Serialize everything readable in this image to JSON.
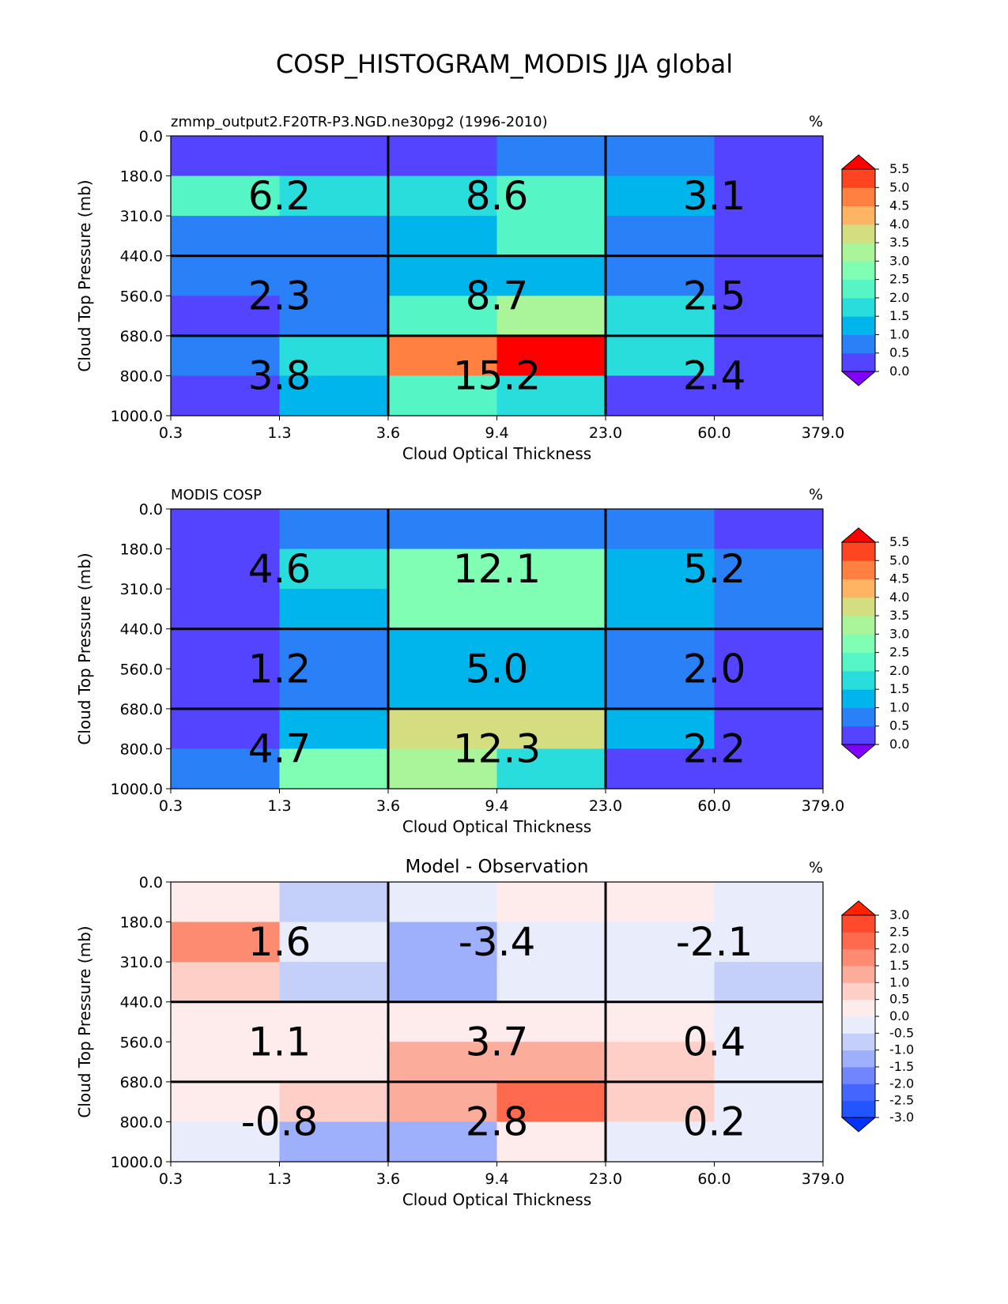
{
  "title": "COSP_HISTOGRAM_MODIS JJA global",
  "chart_data": [
    {
      "type": "heatmap",
      "panel_title": "zmmp_output2.F20TR-P3.NGD.ne30pg2 (1996-2010)",
      "title_align": "left",
      "units": "%",
      "xlabel": "Cloud Optical Thickness",
      "ylabel": "Cloud Top Pressure (mb)",
      "x_edges": [
        "0.3",
        "1.3",
        "3.6",
        "9.4",
        "23.0",
        "60.0",
        "379.0"
      ],
      "y_edges": [
        "0.0",
        "180.0",
        "310.0",
        "440.0",
        "560.0",
        "680.0",
        "800.0",
        "1000.0"
      ],
      "values": [
        [
          0.3,
          0.3,
          0.3,
          0.8,
          0.8,
          0.3
        ],
        [
          2.1,
          1.8,
          1.8,
          2.1,
          1.4,
          0.3
        ],
        [
          0.8,
          0.8,
          1.4,
          2.1,
          0.8,
          0.3
        ],
        [
          0.8,
          0.8,
          1.4,
          1.4,
          0.8,
          0.3
        ],
        [
          0.3,
          0.8,
          2.1,
          3.1,
          1.8,
          0.3
        ],
        [
          0.8,
          1.8,
          4.8,
          5.8,
          1.8,
          0.3
        ],
        [
          0.3,
          1.4,
          2.1,
          1.8,
          0.3,
          0.3
        ]
      ],
      "box_sums": [
        [
          "6.2",
          "8.6",
          "3.1"
        ],
        [
          "2.3",
          "8.7",
          "2.5"
        ],
        [
          "3.8",
          "15.2",
          "2.4"
        ]
      ],
      "colorbar": {
        "levels": [
          0.0,
          0.5,
          1.0,
          1.5,
          2.0,
          2.5,
          3.0,
          3.5,
          4.0,
          4.5,
          5.0,
          5.5
        ],
        "tick_labels": [
          "0.0",
          "0.5",
          "1.0",
          "1.5",
          "2.0",
          "2.5",
          "3.0",
          "3.5",
          "4.0",
          "4.5",
          "5.0",
          "5.5"
        ],
        "colors": [
          "#8000ff",
          "#5544ff",
          "#2a80f6",
          "#00b4ec",
          "#2adddd",
          "#55f5c5",
          "#80ffb4",
          "#aaf59a",
          "#d4dd80",
          "#ffb463",
          "#ff8040",
          "#ff4422",
          "#ff0000"
        ]
      }
    },
    {
      "type": "heatmap",
      "panel_title": "MODIS COSP",
      "title_align": "left",
      "units": "%",
      "xlabel": "Cloud Optical Thickness",
      "ylabel": "Cloud Top Pressure (mb)",
      "x_edges": [
        "0.3",
        "1.3",
        "3.6",
        "9.4",
        "23.0",
        "60.0",
        "379.0"
      ],
      "y_edges": [
        "0.0",
        "180.0",
        "310.0",
        "440.0",
        "560.0",
        "680.0",
        "800.0",
        "1000.0"
      ],
      "values": [
        [
          0.3,
          0.8,
          0.8,
          0.8,
          0.8,
          0.3
        ],
        [
          0.3,
          1.8,
          2.8,
          2.8,
          1.4,
          0.8
        ],
        [
          0.3,
          1.4,
          2.8,
          2.8,
          1.4,
          0.8
        ],
        [
          0.3,
          0.8,
          1.4,
          1.4,
          0.8,
          0.3
        ],
        [
          0.3,
          0.8,
          1.4,
          1.4,
          0.8,
          0.3
        ],
        [
          0.3,
          1.4,
          3.6,
          3.6,
          1.4,
          0.3
        ],
        [
          0.8,
          2.8,
          3.1,
          1.8,
          0.3,
          0.3
        ]
      ],
      "box_sums": [
        [
          "4.6",
          "12.1",
          "5.2"
        ],
        [
          "1.2",
          "5.0",
          "2.0"
        ],
        [
          "4.7",
          "12.3",
          "2.2"
        ]
      ],
      "colorbar": {
        "levels": [
          0.0,
          0.5,
          1.0,
          1.5,
          2.0,
          2.5,
          3.0,
          3.5,
          4.0,
          4.5,
          5.0,
          5.5
        ],
        "tick_labels": [
          "0.0",
          "0.5",
          "1.0",
          "1.5",
          "2.0",
          "2.5",
          "3.0",
          "3.5",
          "4.0",
          "4.5",
          "5.0",
          "5.5"
        ],
        "colors": [
          "#8000ff",
          "#5544ff",
          "#2a80f6",
          "#00b4ec",
          "#2adddd",
          "#55f5c5",
          "#80ffb4",
          "#aaf59a",
          "#d4dd80",
          "#ffb463",
          "#ff8040",
          "#ff4422",
          "#ff0000"
        ]
      }
    },
    {
      "type": "heatmap",
      "panel_title": "Model - Observation",
      "title_align": "center",
      "units": "%",
      "xlabel": "Cloud Optical Thickness",
      "ylabel": "Cloud Top Pressure (mb)",
      "x_edges": [
        "0.3",
        "1.3",
        "3.6",
        "9.4",
        "23.0",
        "60.0",
        "379.0"
      ],
      "y_edges": [
        "0.0",
        "180.0",
        "310.0",
        "440.0",
        "560.0",
        "680.0",
        "800.0",
        "1000.0"
      ],
      "values": [
        [
          0.2,
          -0.6,
          -0.2,
          0.2,
          0.2,
          -0.2
        ],
        [
          1.8,
          -0.2,
          -1.1,
          -0.2,
          -0.2,
          -0.2
        ],
        [
          0.7,
          -0.6,
          -1.1,
          -0.2,
          -0.2,
          -0.6
        ],
        [
          0.2,
          0.2,
          0.2,
          0.2,
          0.2,
          -0.2
        ],
        [
          0.2,
          0.2,
          1.1,
          1.4,
          0.7,
          -0.2
        ],
        [
          0.2,
          0.7,
          1.1,
          2.3,
          0.7,
          -0.2
        ],
        [
          -0.2,
          -1.4,
          -1.1,
          0.2,
          -0.2,
          -0.2
        ]
      ],
      "box_sums": [
        [
          "1.6",
          "-3.4",
          "-2.1"
        ],
        [
          "1.1",
          "3.7",
          "0.4"
        ],
        [
          "-0.8",
          "2.8",
          "0.2"
        ]
      ],
      "colorbar": {
        "levels": [
          -3.0,
          -2.5,
          -2.0,
          -1.5,
          -1.0,
          -0.5,
          0.0,
          0.5,
          1.0,
          1.5,
          2.0,
          2.5,
          3.0
        ],
        "tick_labels": [
          "-3.0",
          "-2.5",
          "-2.0",
          "-1.5",
          "-1.0",
          "-0.5",
          "0.0",
          "0.5",
          "1.0",
          "1.5",
          "2.0",
          "2.5",
          "3.0"
        ],
        "colors": [
          "#0033ff",
          "#2255ff",
          "#4466ff",
          "#6f86ff",
          "#9eaffb",
          "#c4cffa",
          "#e8ecfb",
          "#fdeceb",
          "#fdcfc6",
          "#fcac9b",
          "#fd8b72",
          "#fe6a4d",
          "#ff4a2e",
          "#ff2200"
        ]
      }
    }
  ]
}
